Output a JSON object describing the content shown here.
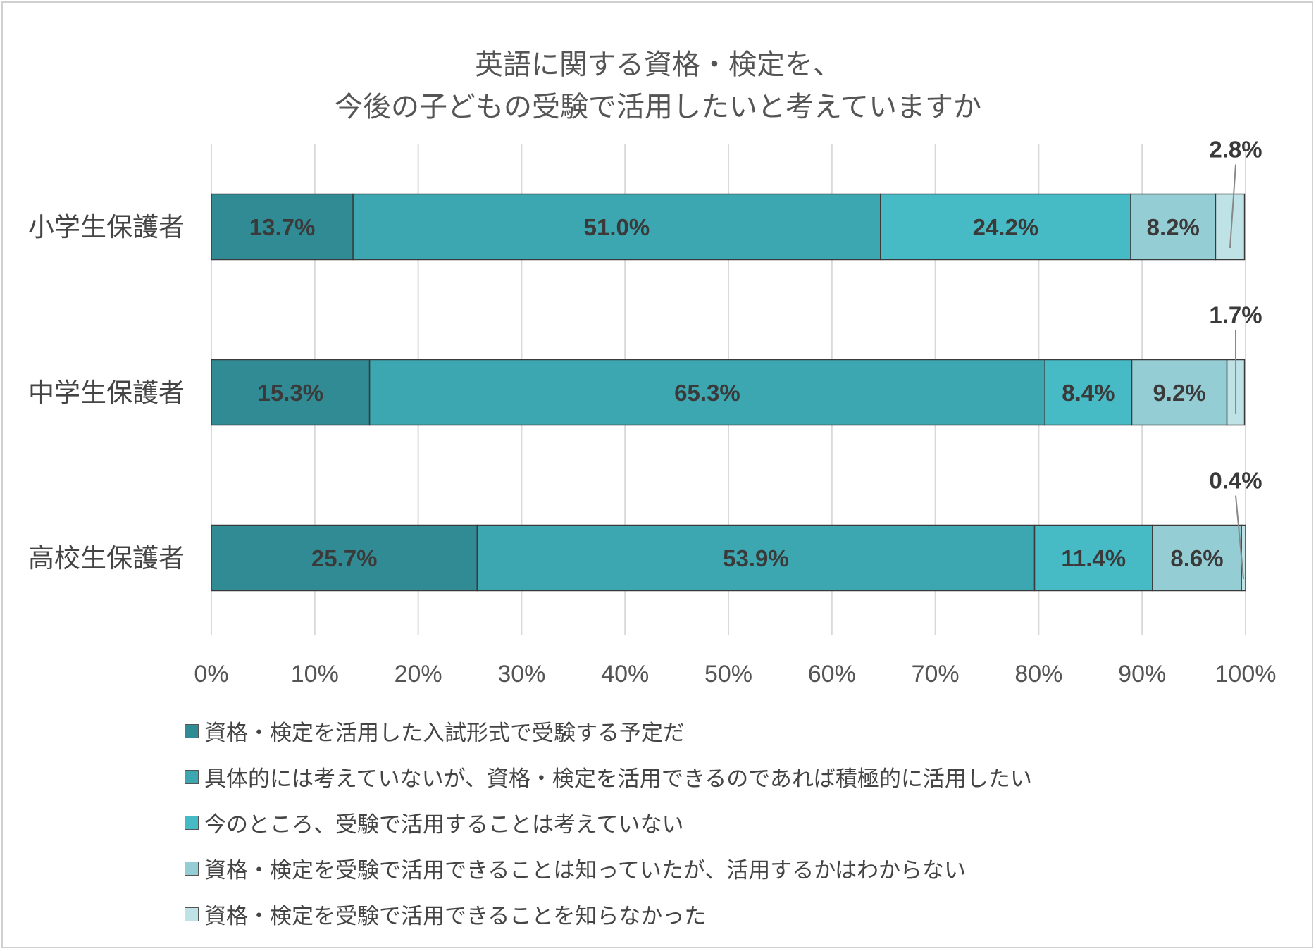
{
  "chart_data": {
    "type": "bar",
    "orientation": "horizontal",
    "stacked": true,
    "title_lines": [
      "英語に関する資格・検定を、",
      "今後の子どもの受験で活用したいと考えていますか"
    ],
    "categories": [
      "小学生保護者",
      "中学生保護者",
      "高校生保護者"
    ],
    "series": [
      {
        "name": "資格・検定を活用した入試形式で受験する予定だ",
        "color": "#318b94",
        "values": [
          13.7,
          15.3,
          25.7
        ]
      },
      {
        "name": "具体的には考えていないが、資格・検定を活用できるのであれば積極的に活用したい",
        "color": "#3ca7b1",
        "values": [
          51.0,
          65.3,
          53.9
        ]
      },
      {
        "name": "今のところ、受験で活用することは考えていない",
        "color": "#46bac5",
        "values": [
          24.2,
          8.4,
          11.4
        ]
      },
      {
        "name": "資格・検定を受験で活用できることは知っていたが、活用するかはわからない",
        "color": "#95cdd4",
        "values": [
          8.2,
          9.2,
          8.6
        ]
      },
      {
        "name": "資格・検定を受験で活用できることを知らなかった",
        "color": "#bfe2e6",
        "values": [
          2.8,
          1.7,
          0.4
        ]
      }
    ],
    "data_labels": [
      [
        "13.7%",
        "51.0%",
        "24.2%",
        "8.2%",
        "2.8%"
      ],
      [
        "15.3%",
        "65.3%",
        "8.4%",
        "9.2%",
        "1.7%"
      ],
      [
        "25.7%",
        "53.9%",
        "11.4%",
        "8.6%",
        "0.4%"
      ]
    ],
    "x_ticks": [
      "0%",
      "10%",
      "20%",
      "30%",
      "40%",
      "50%",
      "60%",
      "70%",
      "80%",
      "90%",
      "100%"
    ],
    "xlim": [
      0,
      100
    ],
    "grid": "vertical",
    "legend_position": "bottom"
  }
}
